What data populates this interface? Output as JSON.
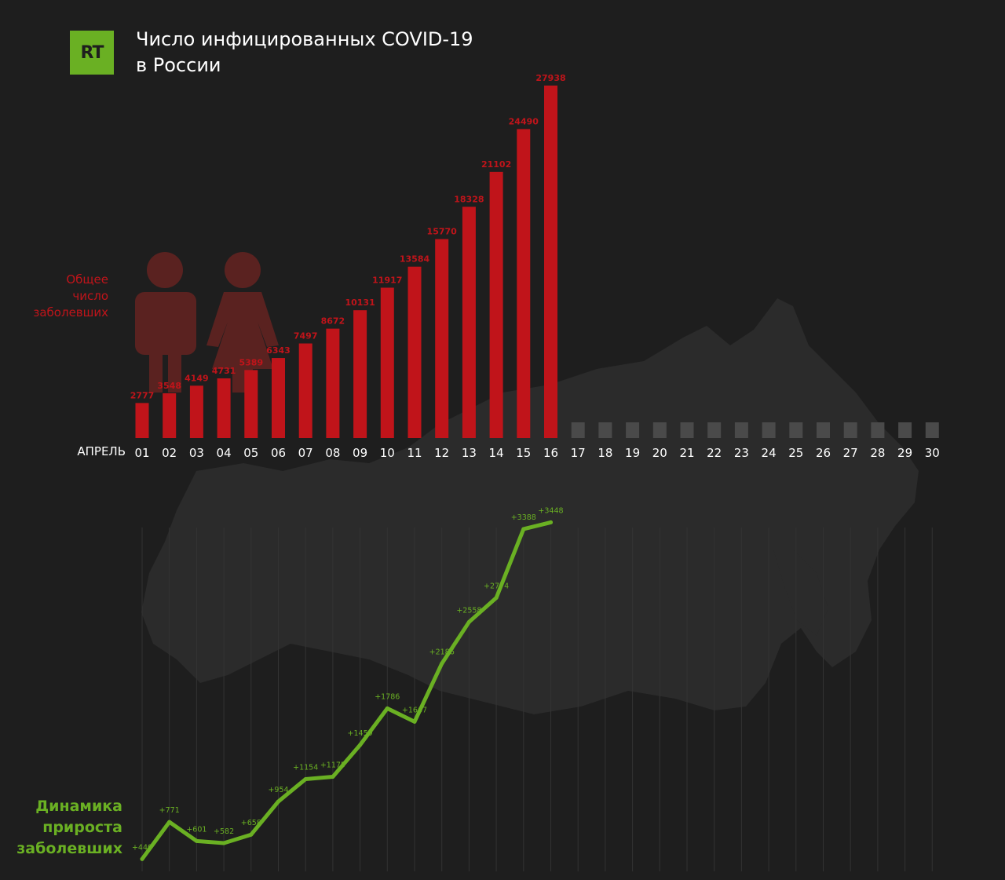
{
  "logo": {
    "text": "RT"
  },
  "title": {
    "line1": "Число инфицированных COVID-19",
    "line2": "в России"
  },
  "labels": {
    "total_lines": [
      "Общее",
      "число",
      "заболевших"
    ],
    "growth_lines": [
      "Динамика",
      "прироста",
      "заболевших"
    ],
    "month": "АПРЕЛЬ"
  },
  "colors": {
    "background": "#1e1e1e",
    "bars": "#c0141a",
    "placeholder_bars": "#4a4a4a",
    "line": "#6ab023",
    "logo": "#6ab023",
    "map": "#2b2b2b",
    "people_icons": "#5a2220"
  },
  "icons": [
    "map-of-russia-icon",
    "man-icon",
    "woman-icon"
  ],
  "chart_data": [
    {
      "type": "bar",
      "categories": [
        "01",
        "02",
        "03",
        "04",
        "05",
        "06",
        "07",
        "08",
        "09",
        "10",
        "11",
        "12",
        "13",
        "14",
        "15",
        "16",
        "17",
        "18",
        "19",
        "20",
        "21",
        "22",
        "23",
        "24",
        "25",
        "26",
        "27",
        "28",
        "29",
        "30"
      ],
      "values": [
        2777,
        3548,
        4149,
        4731,
        5389,
        6343,
        7497,
        8672,
        10131,
        11917,
        13584,
        15770,
        18328,
        21102,
        24490,
        27938,
        null,
        null,
        null,
        null,
        null,
        null,
        null,
        null,
        null,
        null,
        null,
        null,
        null,
        null
      ],
      "ylim": [
        0,
        28000
      ]
    },
    {
      "type": "line",
      "x": [
        "01",
        "02",
        "03",
        "04",
        "05",
        "06",
        "07",
        "08",
        "09",
        "10",
        "11",
        "12",
        "13",
        "14",
        "15",
        "16"
      ],
      "values": [
        440,
        771,
        601,
        582,
        658,
        954,
        1154,
        1175,
        1459,
        1786,
        1667,
        2186,
        2558,
        2774,
        3388,
        3448
      ],
      "labels": [
        "+440",
        "+771",
        "+601",
        "+582",
        "+658",
        "+954",
        "+1154",
        "+1175",
        "+1459",
        "+1786",
        "+1667",
        "+2186",
        "+2558",
        "+2774",
        "+3388",
        "+3448"
      ]
    }
  ]
}
